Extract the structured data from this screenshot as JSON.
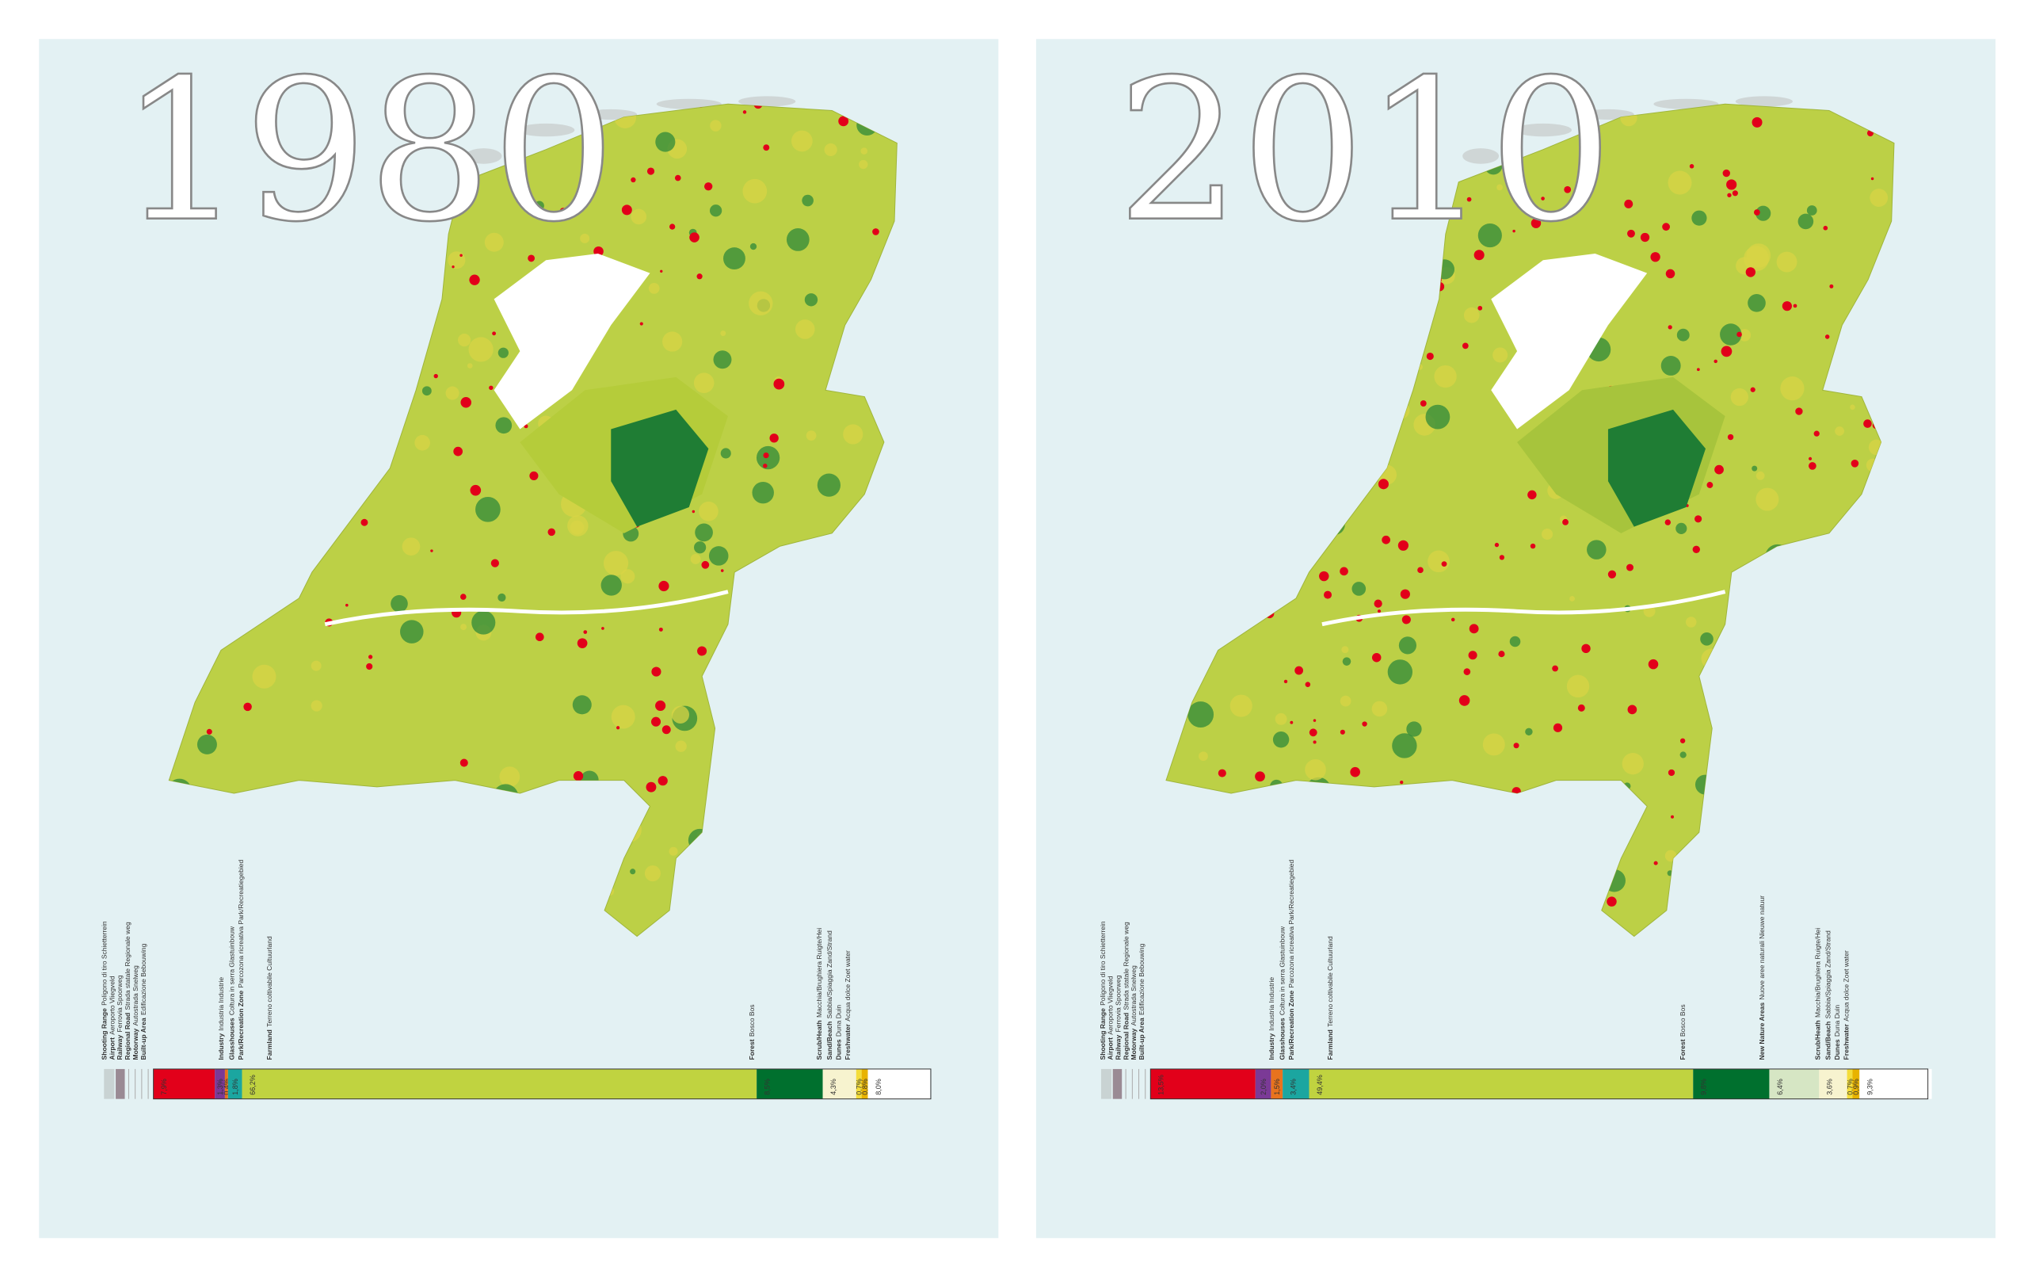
{
  "panels": [
    {
      "year": "1980",
      "legend": [
        {
          "term": "Shooting Range",
          "translation": "Poligono di tiro  Schietterrein"
        },
        {
          "term": "Airport",
          "translation": "Aeroporto  Vliegveld"
        },
        {
          "term": "Railway",
          "translation": "Ferrovia  Spoorweg"
        },
        {
          "term": "Regional Road",
          "translation": "Strada statale  Regionale weg"
        },
        {
          "term": "Motorway",
          "translation": "Autostrada  Snelweg"
        },
        {
          "term": "Built-up Area",
          "translation": "Edificazione  Bebouwing"
        },
        {
          "term": "Industry",
          "translation": "Industria  Industrie"
        },
        {
          "term": "Glasshouses",
          "translation": "Coltura in serra  Glastuinbouw"
        },
        {
          "term": "Park/Recreation Zone",
          "translation": "Parcozona ricreativa  Park/Recreatiegebied"
        },
        {
          "term": "Farmland",
          "translation": "Terreno coltivabile  Cultuurland"
        },
        {
          "term": "Forest",
          "translation": "Bosco  Bos"
        },
        {
          "term": "Scrub/Heath",
          "translation": "Macchia/Brughiera  Ruigte/Hei"
        },
        {
          "term": "Sand/Beach",
          "translation": "Sabbia/Spiaggia  Zand/Strand"
        },
        {
          "term": "Dunes",
          "translation": "Duna  Duin"
        },
        {
          "term": "Freshwater",
          "translation": "Acqua dolce  Zoet water"
        }
      ],
      "segments": [
        {
          "value": 7.9,
          "value_label": "7,9%",
          "color": "#e2001a"
        },
        {
          "value": 1.3,
          "value_label": "1,3%",
          "color": "#7b3a96"
        },
        {
          "value": 0.4,
          "value_label": "0,4%",
          "color": "#e8731e"
        },
        {
          "value": 1.8,
          "value_label": "1,8%",
          "color": "#1ba6a0"
        },
        {
          "value": 66.2,
          "value_label": "66,2%",
          "color": "#c0d340"
        },
        {
          "value": 8.5,
          "value_label": "8,5%",
          "color": "#00702e"
        },
        {
          "value": 4.3,
          "value_label": "4,3%",
          "color": "#f7f3cf"
        },
        {
          "value": 0.7,
          "value_label": "0,7%",
          "color": "#f4dd3a"
        },
        {
          "value": 0.8,
          "value_label": "0,8%",
          "color": "#e8b300"
        },
        {
          "value": 8.0,
          "value_label": "8,0%",
          "color": "#ffffff"
        }
      ]
    },
    {
      "year": "2010",
      "legend": [
        {
          "term": "Shooting Range",
          "translation": "Poligono di tiro  Schietterrein"
        },
        {
          "term": "Airport",
          "translation": "Aeroporto  Vliegveld"
        },
        {
          "term": "Railway",
          "translation": "Ferrovia  Spoorweg"
        },
        {
          "term": "Regional Road",
          "translation": "Strada statale  Regionale weg"
        },
        {
          "term": "Motorway",
          "translation": "Autostrada  Snelweg"
        },
        {
          "term": "Built-up Area",
          "translation": "Edificazione  Bebouwing"
        },
        {
          "term": "Industry",
          "translation": "Industria  Industrie"
        },
        {
          "term": "Glasshouses",
          "translation": "Coltura in serra  Glastuinbouw"
        },
        {
          "term": "Park/Recreation Zone",
          "translation": "Parcozona ricreativa  Park/Recreatiegebied"
        },
        {
          "term": "Farmland",
          "translation": "Terreno coltivabile  Cultuurland"
        },
        {
          "term": "Forest",
          "translation": "Bosco  Bos"
        },
        {
          "term": "New Nature Areas",
          "translation": "Nuove aree naturali  Nieuwe natuur"
        },
        {
          "term": "Scrub/Heath",
          "translation": "Macchia/Brughiera  Ruigte/Hei"
        },
        {
          "term": "Sand/Beach",
          "translation": "Sabbia/Spiaggia  Zand/Strand"
        },
        {
          "term": "Dunes",
          "translation": "Duna  Duin"
        },
        {
          "term": "Freshwater",
          "translation": "Acqua dolce  Zoet water"
        }
      ],
      "segments": [
        {
          "value": 13.5,
          "value_label": "13,5%",
          "color": "#e2001a"
        },
        {
          "value": 2.0,
          "value_label": "2,0%",
          "color": "#7b3a96"
        },
        {
          "value": 1.5,
          "value_label": "1,5%",
          "color": "#e8731e"
        },
        {
          "value": 3.4,
          "value_label": "3,4%",
          "color": "#1ba6a0"
        },
        {
          "value": 49.4,
          "value_label": "49,4%",
          "color": "#c0d340"
        },
        {
          "value": 9.8,
          "value_label": "9,8%",
          "color": "#00702e"
        },
        {
          "value": 6.4,
          "value_label": "6,4%",
          "color": "#d6e6c4"
        },
        {
          "value": 3.6,
          "value_label": "3,6%",
          "color": "#f7f3cf"
        },
        {
          "value": 0.7,
          "value_label": "0,7%",
          "color": "#f4dd3a"
        },
        {
          "value": 0.9,
          "value_label": "0,9%",
          "color": "#e8b300"
        },
        {
          "value": 9.3,
          "value_label": "9,3%",
          "color": "#ffffff"
        }
      ]
    }
  ]
}
